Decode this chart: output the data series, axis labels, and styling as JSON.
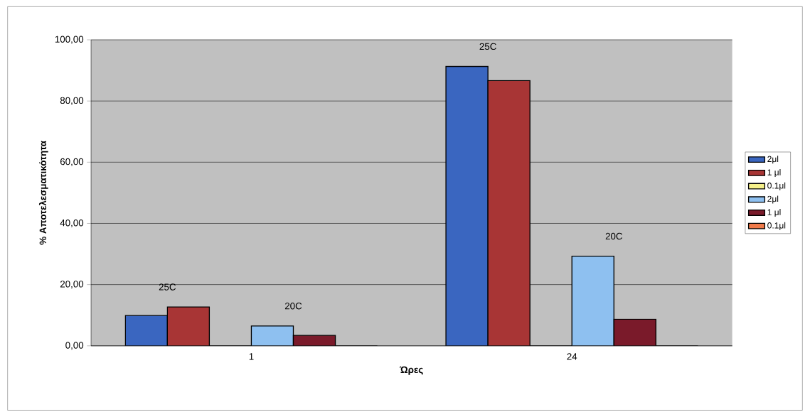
{
  "chart_data": {
    "type": "bar",
    "xlabel": "Ώρες",
    "ylabel": "% Αποτελεσματικότητα",
    "categories": [
      "1",
      "24"
    ],
    "series": [
      {
        "name": "2μl",
        "color": "#3a66c0",
        "values": [
          9.9,
          91.3
        ]
      },
      {
        "name": "1 μl",
        "color": "#a83535",
        "values": [
          12.7,
          86.7
        ]
      },
      {
        "name": "0.1μl",
        "color": "#f5f08a",
        "values": [
          0,
          0
        ]
      },
      {
        "name": "2μl",
        "color": "#8ec0f0",
        "values": [
          6.5,
          29.3
        ]
      },
      {
        "name": "1 μl",
        "color": "#7a1a2a",
        "values": [
          3.4,
          8.7
        ]
      },
      {
        "name": "0.1μl",
        "color": "#f07a4a",
        "values": [
          0,
          0
        ]
      }
    ],
    "ylim": [
      0,
      100
    ],
    "yticks": [
      {
        "value": 0,
        "label": "0,00"
      },
      {
        "value": 20,
        "label": "20,00"
      },
      {
        "value": 40,
        "label": "40,00"
      },
      {
        "value": 60,
        "label": "60,00"
      },
      {
        "value": 80,
        "label": "80,00"
      },
      {
        "value": 100,
        "label": "100,00"
      }
    ],
    "annotations": [
      "25C",
      "20C",
      "25C",
      "20C"
    ],
    "grid": "y",
    "legend": "right"
  }
}
